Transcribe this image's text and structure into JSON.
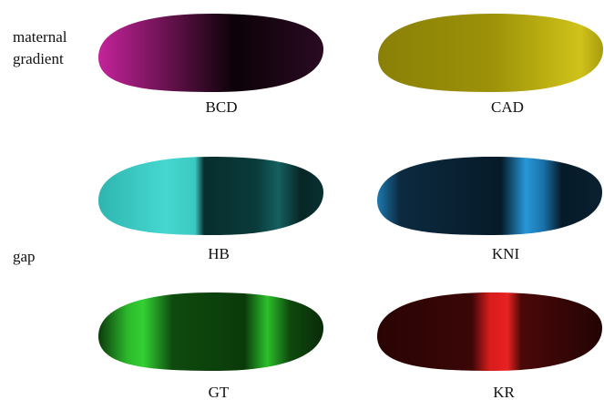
{
  "rows": [
    {
      "label": [
        "maternal",
        "gradient"
      ],
      "panels": [
        "BCD",
        "CAD"
      ]
    },
    {
      "label": [
        "gap"
      ],
      "panels": [
        "HB",
        "KNI",
        "GT",
        "KR"
      ]
    }
  ]
}
